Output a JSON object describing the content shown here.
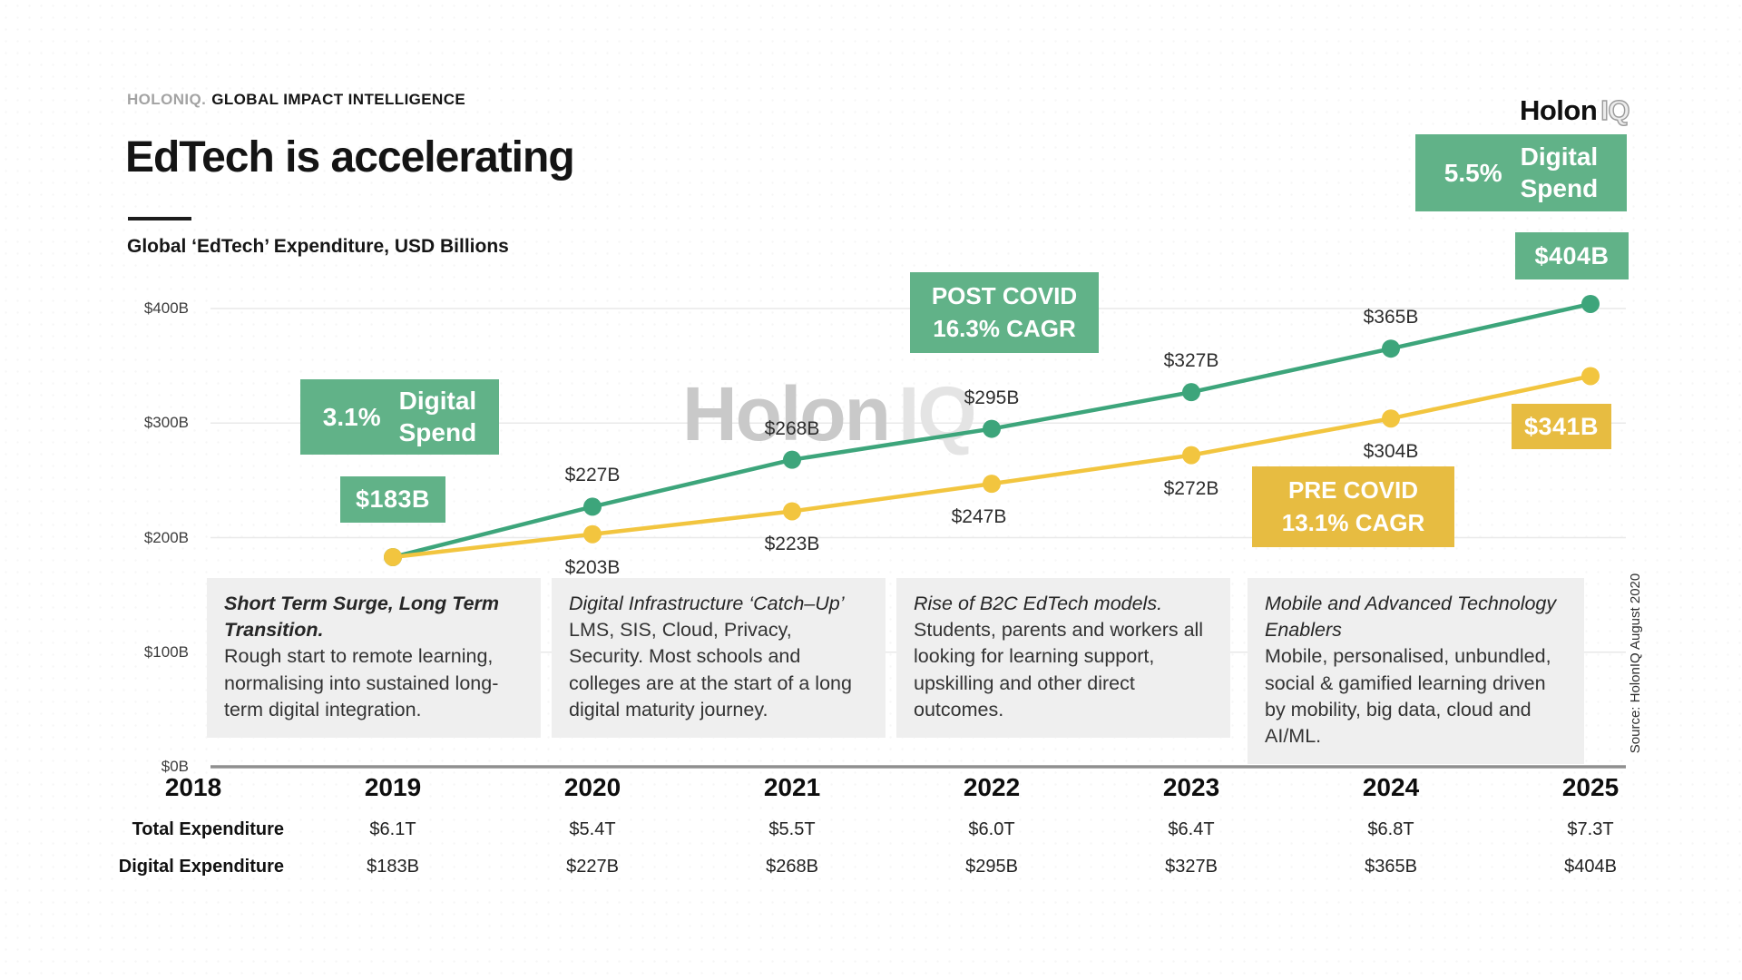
{
  "header": {
    "brand": "HOLONIQ.",
    "tagline": "GLOBAL IMPACT INTELLIGENCE",
    "logo_primary": "Holon",
    "logo_secondary": "IQ"
  },
  "title": "EdTech is accelerating",
  "subtitle": "Global ‘EdTech’ Expenditure, USD Billions",
  "watermark": {
    "primary": "Holon",
    "secondary": "IQ"
  },
  "colors": {
    "green_badge": "#61b288",
    "green_line": "#3da57b",
    "yellow_badge": "#e7bc41",
    "yellow_line": "#f2c53f",
    "gridline": "#e9e9e9",
    "axis": "#8f8f8f"
  },
  "badges": {
    "digital_spend_2025": {
      "pct": "5.5%",
      "label_line1": "Digital",
      "label_line2": "Spend"
    },
    "digital_spend_2019": {
      "pct": "3.1%",
      "label_line1": "Digital",
      "label_line2": "Spend"
    },
    "post_covid": {
      "line1": "POST COVID",
      "line2": "16.3% CAGR"
    },
    "pre_covid": {
      "line1": "PRE COVID",
      "line2": "13.1% CAGR"
    },
    "start_value": "$183B",
    "end_value_green": "$404B",
    "end_value_yellow": "$341B"
  },
  "chart_data": {
    "type": "line",
    "title": "Global ‘EdTech’ Expenditure, USD Billions",
    "xlabel": "",
    "ylabel": "USD Billions",
    "x_axis_ticks": [
      2018,
      2019,
      2020,
      2021,
      2022,
      2023,
      2024,
      2025
    ],
    "x": [
      2019,
      2020,
      2021,
      2022,
      2023,
      2024,
      2025
    ],
    "ylim": [
      0,
      400
    ],
    "y_ticks": [
      {
        "value": 0,
        "label": "$0B"
      },
      {
        "value": 100,
        "label": "$100B"
      },
      {
        "value": 200,
        "label": "$200B"
      },
      {
        "value": 300,
        "label": "$300B"
      },
      {
        "value": 400,
        "label": "$400B"
      }
    ],
    "grid": true,
    "legend_position": "none",
    "series": [
      {
        "name": "Post COVID Digital Expenditure (5.5% Digital Spend, 16.3% CAGR)",
        "color_key": "green",
        "values": [
          183,
          227,
          268,
          295,
          327,
          365,
          404
        ],
        "point_labels": [
          "",
          "$227B",
          "$268B",
          "$295B",
          "$327B",
          "$365B",
          ""
        ]
      },
      {
        "name": "Pre COVID Digital Expenditure (3.1% Digital Spend, 13.1% CAGR)",
        "color_key": "yellow",
        "values": [
          183,
          203,
          223,
          247,
          272,
          304,
          341
        ],
        "point_labels": [
          "",
          "$203B",
          "$223B",
          "$247B",
          "$272B",
          "$304B",
          ""
        ]
      }
    ]
  },
  "annotations": [
    {
      "title": "Short Term Surge, Long Term Transition.",
      "body": "Rough start to remote learning,  normalising into sustained long-term digital integration."
    },
    {
      "title": "Digital Infrastructure ‘Catch–Up’",
      "body": "LMS, SIS, Cloud, Privacy, Security. Most schools and colleges are at the start of a long digital maturity journey."
    },
    {
      "title": "Rise of B2C EdTech models.",
      "body": "Students, parents and workers all looking for learning support, upskilling and other direct outcomes."
    },
    {
      "title": "Mobile and Advanced Technology Enablers",
      "body": "Mobile, personalised, unbundled, social & gamified learning driven by mobility, big data, cloud and AI/ML."
    }
  ],
  "table": {
    "rows": [
      {
        "label": "Total Expenditure",
        "values": [
          "$6.1T",
          "$5.4T",
          "$5.5T",
          "$6.0T",
          "$6.4T",
          "$6.8T",
          "$7.3T"
        ]
      },
      {
        "label": "Digital Expenditure",
        "values": [
          "$183B",
          "$227B",
          "$268B",
          "$295B",
          "$327B",
          "$365B",
          "$404B"
        ]
      }
    ]
  },
  "source": "Source: HolonIQ August 2020"
}
